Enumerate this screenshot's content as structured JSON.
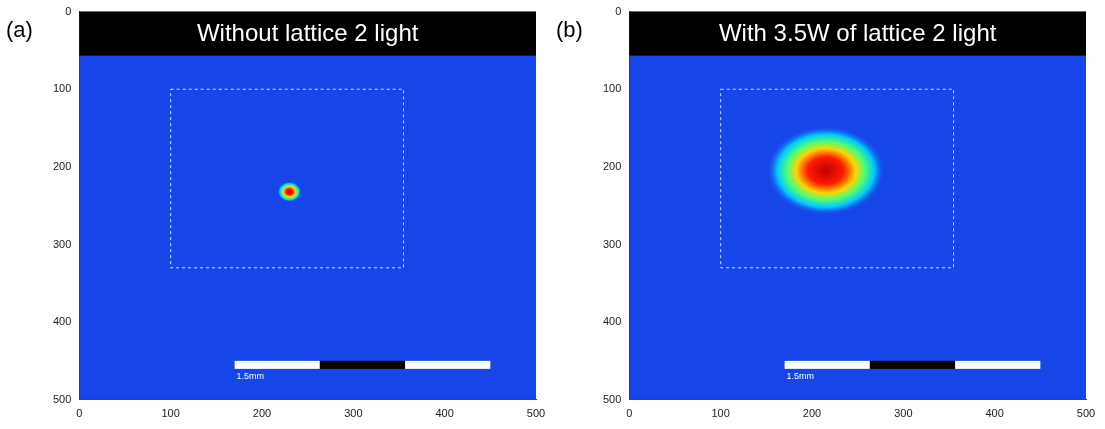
{
  "chart_data": [
    {
      "type": "image",
      "panel": "(a)",
      "title": "Without lattice 2 light",
      "xlim": [
        0,
        500
      ],
      "ylim": [
        500,
        0
      ],
      "xticks": [
        0,
        100,
        200,
        300,
        400,
        500
      ],
      "yticks": [
        0,
        100,
        200,
        300,
        400,
        500
      ],
      "grid": false,
      "cloud": {
        "x": 230,
        "y": 232,
        "width": 26,
        "height": 26
      },
      "roi": {
        "x": [
          100,
          355
        ],
        "y": [
          100,
          330
        ]
      },
      "scale_bar": {
        "x": [
          170,
          450
        ],
        "y": 455,
        "label": "1.5mm"
      }
    },
    {
      "type": "image",
      "panel": "(b)",
      "title": "With 3.5W of lattice 2 light",
      "xlim": [
        0,
        500
      ],
      "ylim": [
        500,
        0
      ],
      "xticks": [
        0,
        100,
        200,
        300,
        400,
        500
      ],
      "yticks": [
        0,
        100,
        200,
        300,
        400,
        500
      ],
      "grid": false,
      "cloud": {
        "x": 215,
        "y": 205,
        "width": 130,
        "height": 115
      },
      "roi": {
        "x": [
          100,
          355
        ],
        "y": [
          100,
          330
        ]
      },
      "scale_bar": {
        "x": [
          170,
          450
        ],
        "y": 455,
        "label": "1.5mm"
      }
    }
  ]
}
